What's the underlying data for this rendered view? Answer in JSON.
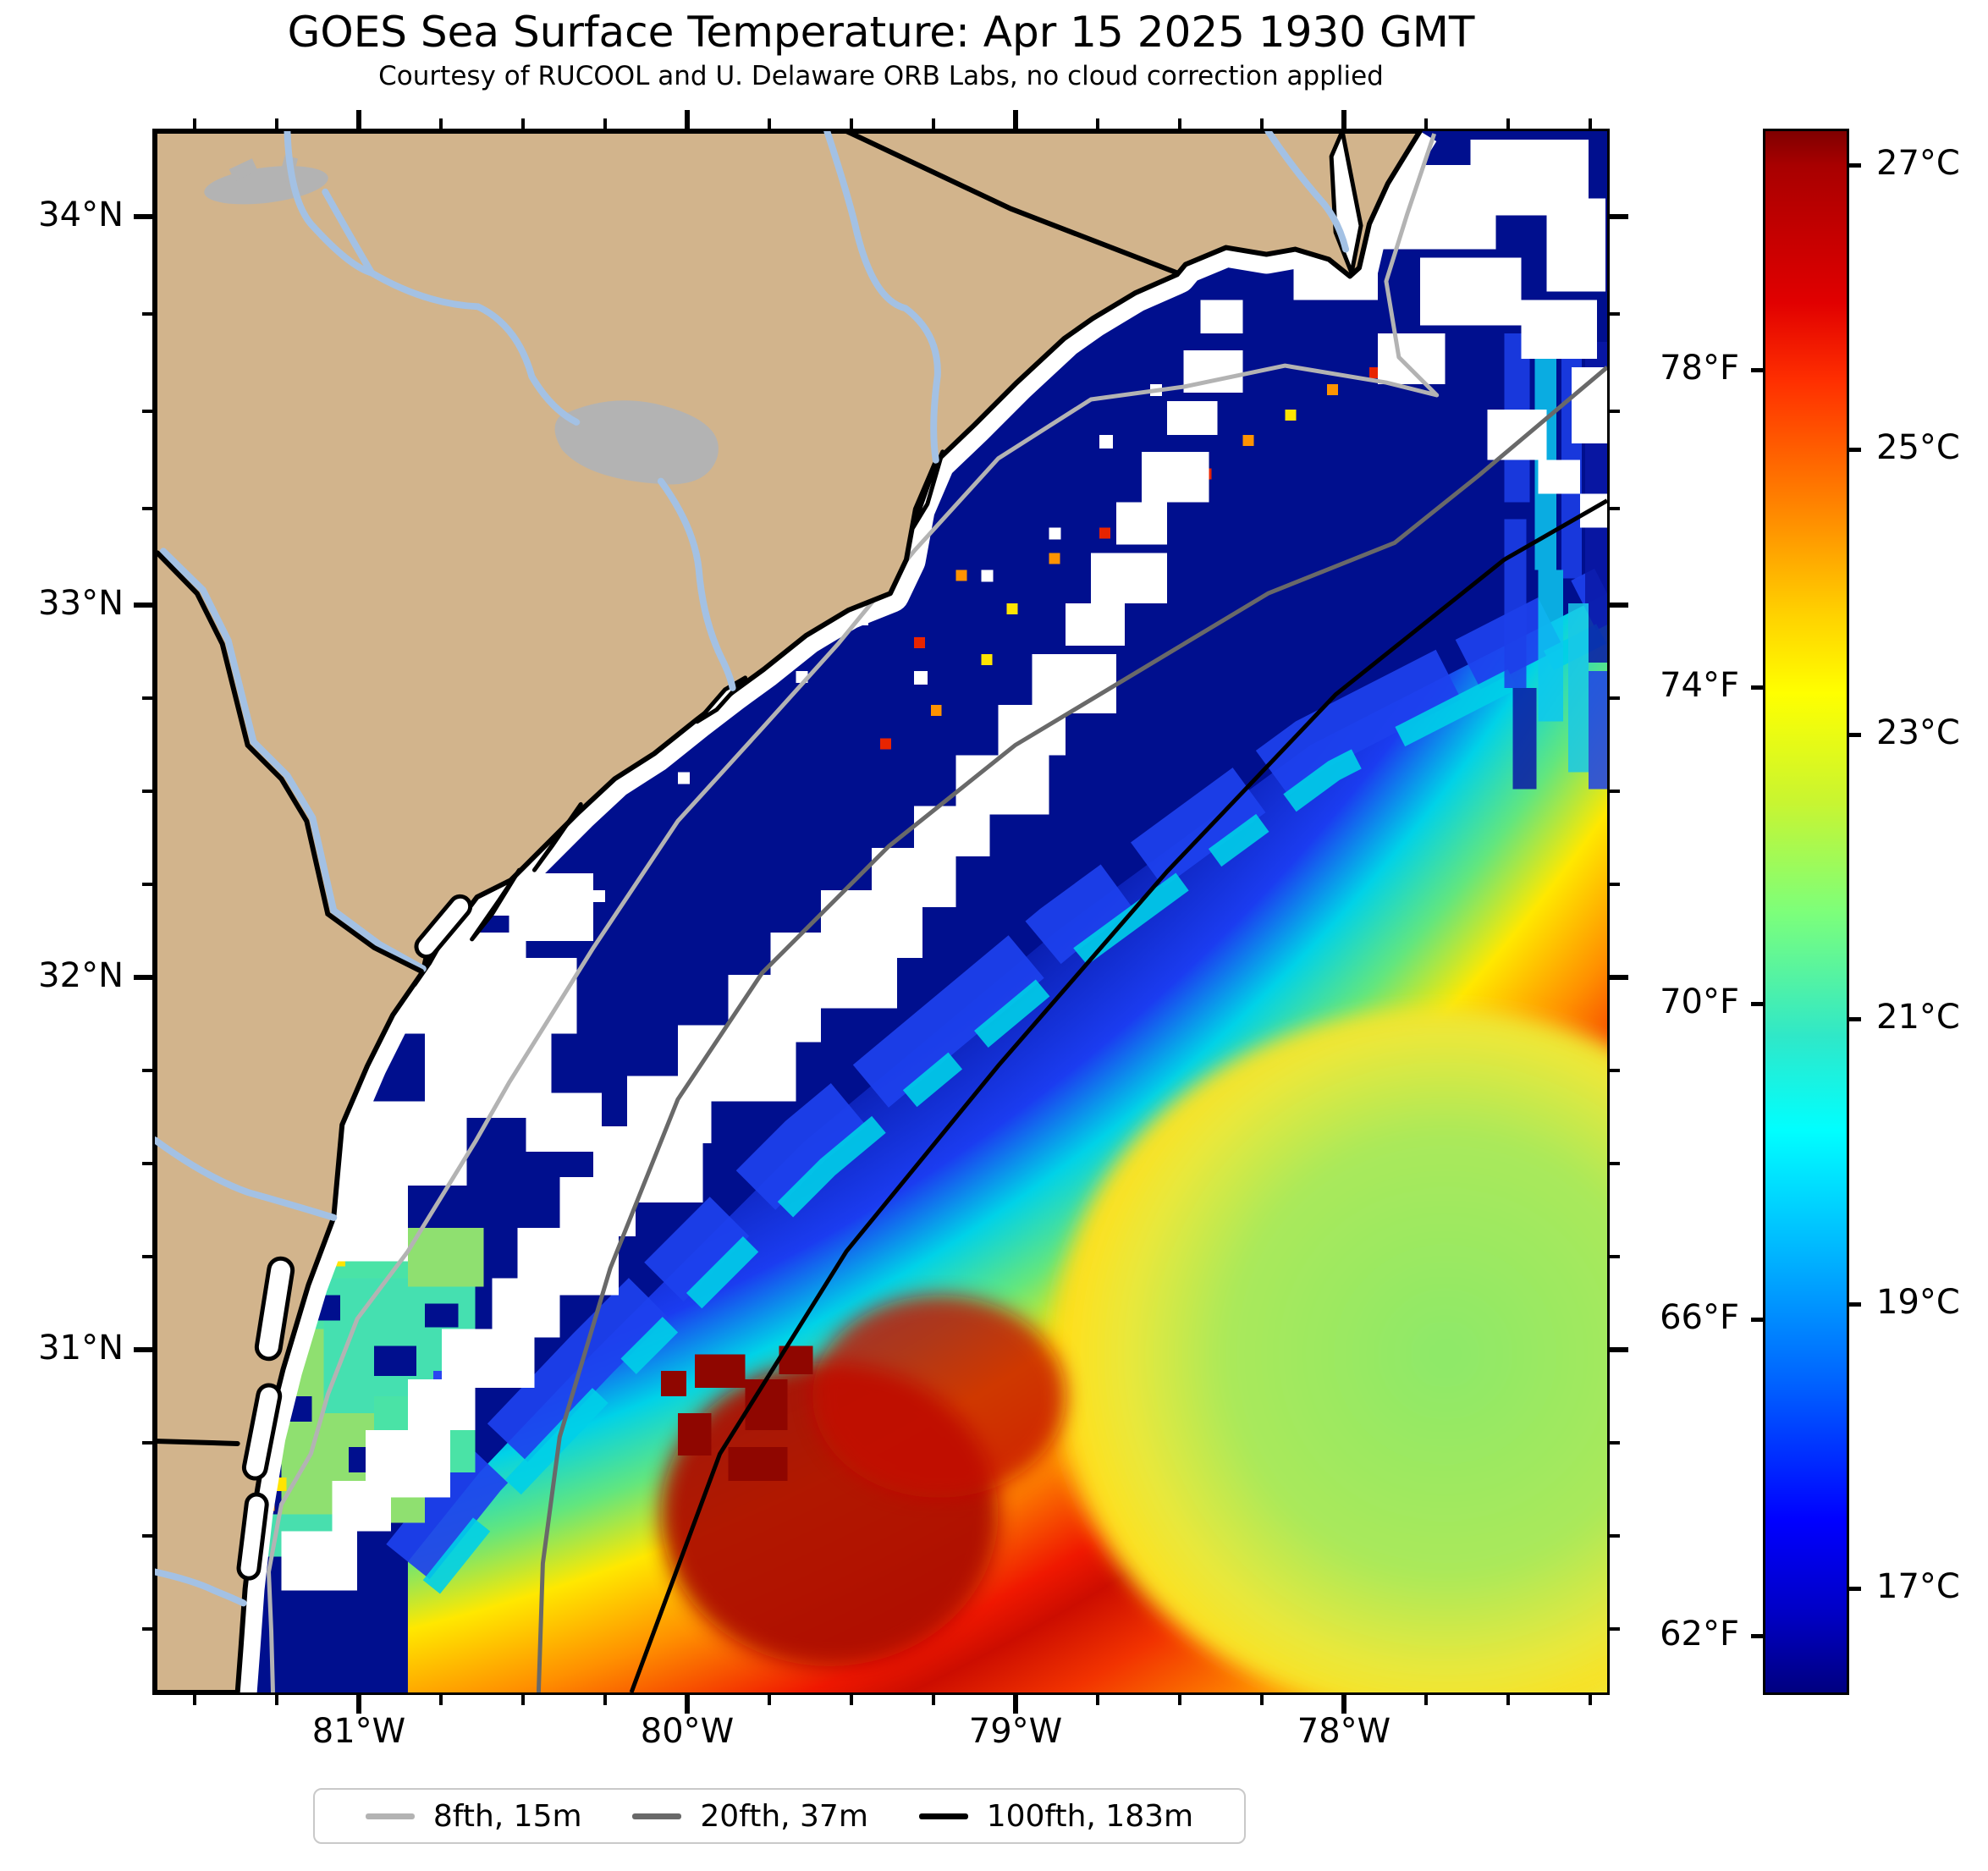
{
  "title": "GOES Sea Surface Temperature: Apr 15 2025 1930 GMT",
  "subtitle": "Courtesy of RUCOOL and U. Delaware ORB Labs, no cloud correction applied",
  "axes": {
    "x": [
      "81°W",
      "80°W",
      "79°W",
      "78°W"
    ],
    "y": [
      "34°N",
      "33°N",
      "32°N",
      "31°N"
    ]
  },
  "colorbar": {
    "celsius": [
      "27°C",
      "25°C",
      "23°C",
      "21°C",
      "19°C",
      "17°C"
    ],
    "fahrenheit": [
      "78°F",
      "74°F",
      "70°F",
      "66°F",
      "62°F"
    ]
  },
  "legend": {
    "items": [
      {
        "label": "8fth, 15m",
        "color": "#b3b3b3"
      },
      {
        "label": "20fth, 37m",
        "color": "#696969"
      },
      {
        "label": "100fth, 183m",
        "color": "#000000"
      }
    ]
  },
  "map_colors": {
    "land": "#d2b48c",
    "lake": "#b3b3b3",
    "river": "#a3c1e4",
    "cloud_no_data": "#ffffff",
    "cold_shelf_water": "#000f8e",
    "gulf_stream_core": "#ad0900",
    "warm_gyre": "#8de969"
  },
  "chart_data": {
    "type": "heatmap",
    "description": "GOES satellite sea surface temperature map of the South Carolina / Georgia coast and adjacent Atlantic (Long Bay, Onslow Bay, Gulf Stream).",
    "x_axis": {
      "label": "longitude",
      "ticks_deg_west": [
        81,
        80,
        79,
        78
      ],
      "range_deg_west": [
        81.67,
        77.15
      ]
    },
    "y_axis": {
      "label": "latitude",
      "ticks_deg_north": [
        34,
        33,
        32,
        31
      ],
      "range_deg_north": [
        30.1,
        34.25
      ]
    },
    "temperature_scale": {
      "units": [
        "°C",
        "°F"
      ],
      "celsius_ticks": [
        27,
        25,
        23,
        21,
        19,
        17
      ],
      "fahrenheit_ticks": [
        78,
        74,
        70,
        66,
        62
      ],
      "approx_range_c": [
        16.2,
        27.3
      ],
      "colormap": "jet"
    },
    "depth_contours": [
      {
        "label": "8fth, 15m",
        "color": "light gray"
      },
      {
        "label": "20fth, 37m",
        "color": "dark gray"
      },
      {
        "label": "100fth, 183m",
        "color": "black"
      }
    ],
    "features": [
      "tan land with gray lakes and light-blue rivers in upper-left",
      "white cloud / no-data bands along the coast and across the shelf",
      "cold dark-navy shelf water (~16-17°C) inshore",
      "sharp diagonal SST front parallel to the 100-fathom contour",
      "warm Gulf Stream band (~25-27°C) in dark red/orange",
      "yellow-green warm gyre (~22-23°C) in the southeast corner",
      "cool green-cyan nearshore patch near 31°N"
    ]
  }
}
